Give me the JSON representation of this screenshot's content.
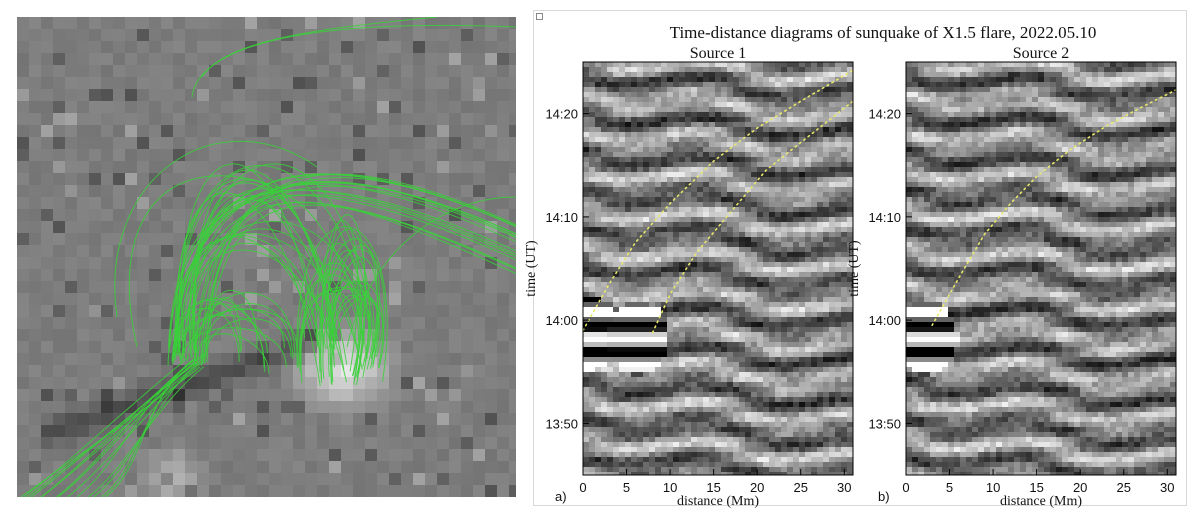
{
  "figure_title": "Time-distance diagrams of sunquake of X1.5 flare, 2022.05.10",
  "colors": {
    "field_lines": "#3ad13a",
    "fit_dots": "#e8e86a",
    "magnetogram_bg": "#7d7d7d"
  },
  "chart_data": [
    {
      "type": "heatmap",
      "panel_letter": "a)",
      "title": "Source 1",
      "xlabel": "distance (Mm)",
      "ylabel": "time (UT)",
      "xlim": [
        0,
        31
      ],
      "ylim": [
        "13:45",
        "14:25"
      ],
      "x_ticks": [
        "0",
        "5",
        "10",
        "15",
        "20",
        "25",
        "30"
      ],
      "y_ticks": [
        "13:50",
        "14:00",
        "14:10",
        "14:20"
      ],
      "ridges": [
        {
          "x": [
            0,
            3,
            6,
            10,
            15,
            20,
            25,
            31
          ],
          "time": [
            "13:59",
            "14:03.5",
            "14:07.5",
            "14:11.3",
            "14:15.4",
            "14:18.6",
            "14:21.2",
            "14:24.2"
          ]
        },
        {
          "x": [
            8,
            10,
            13,
            17,
            21,
            25,
            31
          ],
          "time": [
            "13:58.8",
            "14:02.5",
            "14:06.5",
            "14:10.5",
            "14:14.5",
            "14:17.2",
            "14:21.2"
          ]
        }
      ]
    },
    {
      "type": "heatmap",
      "panel_letter": "b)",
      "title": "Source 2",
      "xlabel": "distance (Mm)",
      "ylabel": "time (UT)",
      "xlim": [
        0,
        31
      ],
      "ylim": [
        "13:45",
        "14:25"
      ],
      "x_ticks": [
        "0",
        "5",
        "10",
        "15",
        "20",
        "25",
        "30"
      ],
      "y_ticks": [
        "13:50",
        "14:00",
        "14:10",
        "14:20"
      ],
      "ridges": [
        {
          "x": [
            3,
            6,
            9,
            12,
            15,
            19,
            23,
            27,
            31
          ],
          "time": [
            "13:59.5",
            "14:04",
            "14:08.3",
            "14:11.3",
            "14:13.9",
            "14:16.6",
            "14:18.8",
            "14:20.6",
            "14:22.3"
          ]
        }
      ]
    }
  ]
}
